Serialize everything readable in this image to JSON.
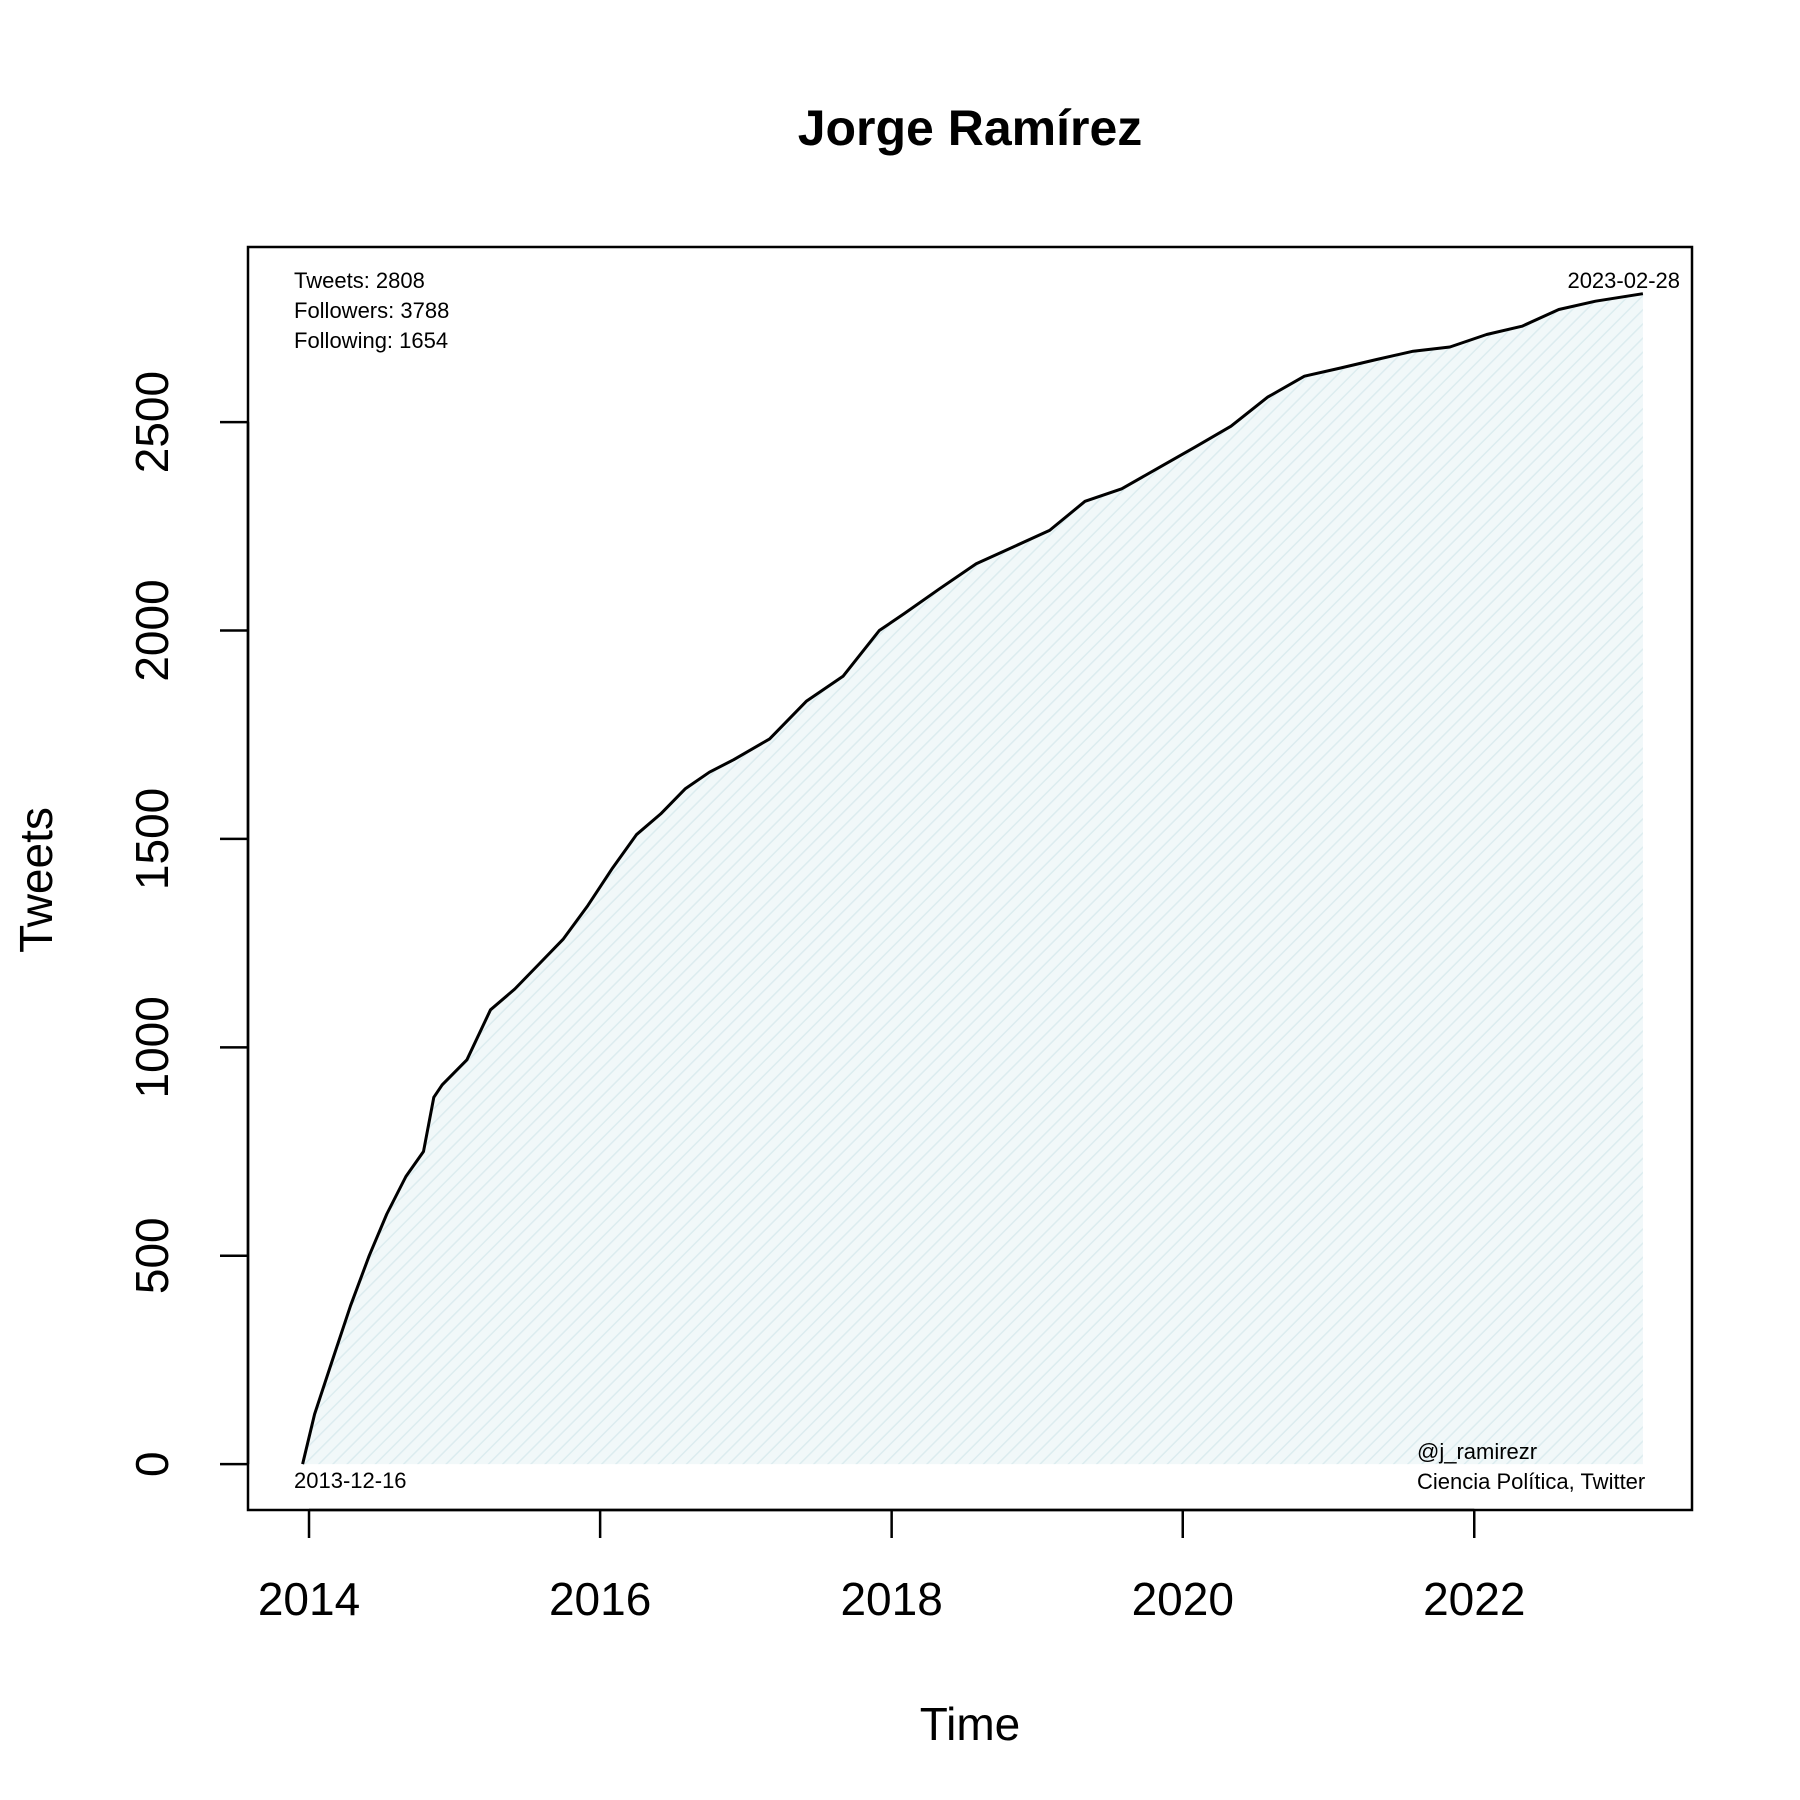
{
  "chart_data": {
    "type": "area",
    "title": "Jorge Ramírez",
    "xlabel": "Time",
    "ylabel": "Tweets",
    "x_ticks": [
      "2014",
      "2016",
      "2018",
      "2020",
      "2022"
    ],
    "y_ticks": [
      "0",
      "500",
      "1000",
      "1500",
      "2000",
      "2500"
    ],
    "xlim": [
      "2013-08-01",
      "2023-07-01"
    ],
    "ylim": [
      -110,
      2920
    ],
    "grid": false,
    "fill_color": "#e6f2f4",
    "line_color": "#000000",
    "annotations": {
      "tweets": "Tweets: 2808",
      "followers": "Followers: 3788",
      "following": "Following: 1654",
      "end_date": "2023-02-28",
      "start_date": "2013-12-16",
      "handle": "@j_ramirezr",
      "source": "Ciencia Política, Twitter"
    },
    "series": [
      {
        "x": [
          "2013-12-16",
          "2014-01-15",
          "2014-03-01",
          "2014-04-15",
          "2014-06-01",
          "2014-07-15",
          "2014-09-01",
          "2014-10-15",
          "2014-11-10",
          "2014-12-01",
          "2015-02-01",
          "2015-04-01",
          "2015-06-01",
          "2015-08-01",
          "2015-10-01",
          "2015-12-01",
          "2016-02-01",
          "2016-04-01",
          "2016-06-01",
          "2016-08-01",
          "2016-10-01",
          "2016-12-01",
          "2017-03-01",
          "2017-06-01",
          "2017-09-01",
          "2017-12-01",
          "2018-02-01",
          "2018-05-01",
          "2018-08-01",
          "2018-11-01",
          "2019-02-01",
          "2019-05-01",
          "2019-08-01",
          "2019-11-01",
          "2020-02-01",
          "2020-05-01",
          "2020-08-01",
          "2020-11-01",
          "2021-02-01",
          "2021-05-01",
          "2021-08-01",
          "2021-11-01",
          "2022-02-01",
          "2022-05-01",
          "2022-08-01",
          "2022-11-01",
          "2023-02-28"
        ],
        "y": [
          0,
          120,
          250,
          380,
          500,
          600,
          690,
          750,
          880,
          910,
          970,
          1090,
          1140,
          1200,
          1260,
          1340,
          1430,
          1510,
          1560,
          1620,
          1660,
          1690,
          1740,
          1830,
          1890,
          2000,
          2040,
          2100,
          2160,
          2200,
          2240,
          2310,
          2340,
          2390,
          2440,
          2490,
          2560,
          2610,
          2630,
          2650,
          2670,
          2680,
          2710,
          2730,
          2770,
          2790,
          2808
        ]
      }
    ]
  }
}
